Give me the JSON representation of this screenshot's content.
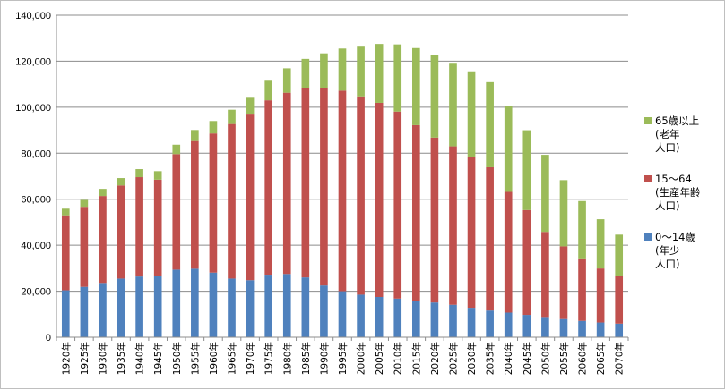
{
  "chart_data": {
    "type": "bar",
    "stacked": true,
    "title": "",
    "xlabel": "",
    "ylabel": "",
    "ylim": [
      0,
      140000
    ],
    "yticks": [
      0,
      20000,
      40000,
      60000,
      80000,
      100000,
      120000,
      140000
    ],
    "ytick_labels": [
      "0",
      "20,000",
      "40,000",
      "60,000",
      "80,000",
      "100,000",
      "120,000",
      "140,000"
    ],
    "grid": true,
    "legend_position": "right",
    "categories": [
      "1920年",
      "1925年",
      "1930年",
      "1935年",
      "1940年",
      "1945年",
      "1950年",
      "1955年",
      "1960年",
      "1965年",
      "1970年",
      "1975年",
      "1980年",
      "1985年",
      "1990年",
      "1995年",
      "2000年",
      "2005年",
      "2010年",
      "2015年",
      "2020年",
      "2025年",
      "2030年",
      "2035年",
      "2040年",
      "2045年",
      "2050年",
      "2055年",
      "2060年",
      "2065年",
      "2070年"
    ],
    "series": [
      {
        "key": "young",
        "name_lines": [
          "0〜14歳",
          "(年少",
          "人口)"
        ],
        "color": "#4f81bd",
        "values": [
          20400,
          21900,
          23600,
          25500,
          26400,
          26500,
          29400,
          29800,
          28100,
          25500,
          24800,
          27200,
          27500,
          26000,
          22500,
          20000,
          18500,
          17500,
          16800,
          15900,
          15100,
          14100,
          12800,
          11600,
          10700,
          9700,
          8800,
          7900,
          7100,
          6400,
          5900
        ]
      },
      {
        "key": "working",
        "name_lines": [
          "15〜64",
          "(生産年齢",
          "人口)"
        ],
        "color": "#c0504d",
        "values": [
          32600,
          34800,
          37800,
          40500,
          43200,
          42000,
          50200,
          55500,
          60500,
          67200,
          72000,
          75800,
          78800,
          82500,
          86000,
          87200,
          86200,
          84400,
          81300,
          76300,
          71700,
          68900,
          65700,
          62300,
          52500,
          45600,
          37000,
          31600,
          27200,
          23500,
          20700
        ]
      },
      {
        "key": "elderly",
        "name_lines": [
          "65歳以上",
          "(老年",
          "人口)"
        ],
        "color": "#9bbb59",
        "values": [
          2900,
          3000,
          3100,
          3200,
          3500,
          3700,
          4100,
          4800,
          5400,
          6200,
          7300,
          8900,
          10600,
          12500,
          14900,
          18300,
          22000,
          25600,
          29200,
          33500,
          36000,
          36300,
          37100,
          37000,
          37400,
          34700,
          33500,
          28800,
          24900,
          21400,
          18000
        ]
      }
    ]
  }
}
